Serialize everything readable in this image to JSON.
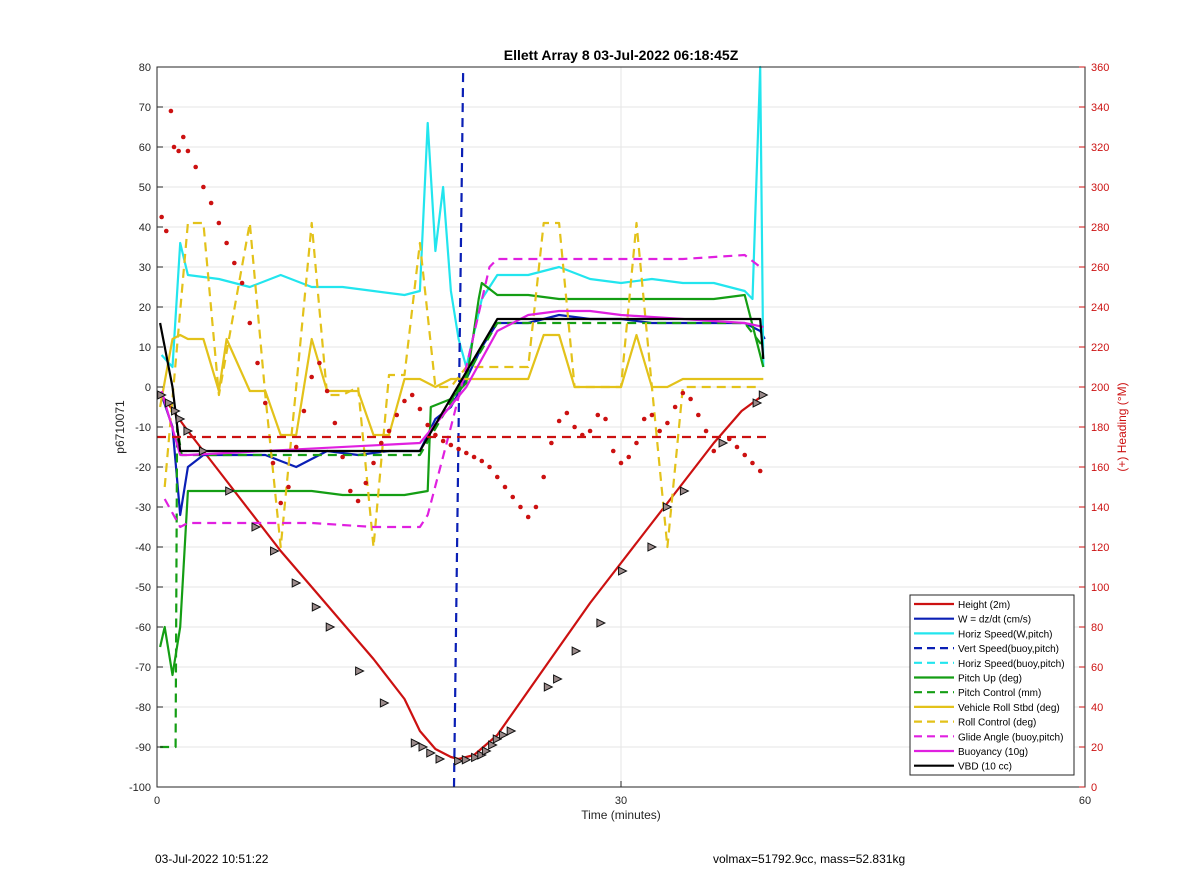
{
  "chart_data": {
    "type": "line",
    "title": "Ellett Array 8 03-Jul-2022 06:18:45Z",
    "xlabel": "Time (minutes)",
    "ylabel_left": "p6710071",
    "ylabel_right": "(+) Heading (°M)",
    "xlim": [
      0,
      60
    ],
    "ylim_left": [
      -100,
      80
    ],
    "ylim_right": [
      0,
      360
    ],
    "xticks": [
      "0",
      "30",
      "60"
    ],
    "yticks_left": [
      "80",
      "70",
      "60",
      "50",
      "40",
      "30",
      "20",
      "10",
      "0",
      "-10",
      "-20",
      "-30",
      "-40",
      "-50",
      "-60",
      "-70",
      "-80",
      "-90",
      "-100"
    ],
    "yticks_right": [
      "360",
      "340",
      "320",
      "300",
      "280",
      "260",
      "240",
      "220",
      "200",
      "180",
      "160",
      "140",
      "120",
      "100",
      "80",
      "60",
      "40",
      "20",
      "0"
    ],
    "grid": true,
    "legend_position": "bottom-right",
    "legend": [
      {
        "label": "Height (2m)",
        "color": "#cc1111",
        "style": "solid"
      },
      {
        "label": "W = dz/dt (cm/s)",
        "color": "#0a1fb5",
        "style": "solid"
      },
      {
        "label": "Horiz Speed(W,pitch)",
        "color": "#22e5ee",
        "style": "solid"
      },
      {
        "label": "Vert Speed(buoy,pitch)",
        "color": "#0a1fb5",
        "style": "dashed"
      },
      {
        "label": "Horiz Speed(buoy,pitch)",
        "color": "#22e5ee",
        "style": "dashed"
      },
      {
        "label": "Pitch Up (deg)",
        "color": "#149e14",
        "style": "solid"
      },
      {
        "label": "Pitch Control (mm)",
        "color": "#149e14",
        "style": "dashed"
      },
      {
        "label": "Vehicle Roll Stbd (deg)",
        "color": "#e3c21a",
        "style": "solid"
      },
      {
        "label": "Roll Control (deg)",
        "color": "#e3c21a",
        "style": "dashed"
      },
      {
        "label": "Glide Angle (buoy,pitch)",
        "color": "#e020e0",
        "style": "dashed"
      },
      {
        "label": "Buoyancy (10g)",
        "color": "#e020e0",
        "style": "solid"
      },
      {
        "label": "VBD (10 cc)",
        "color": "#000000",
        "style": "solid"
      }
    ],
    "series": [
      {
        "name": "Height (2m)",
        "axis": "left",
        "x": [
          0.3,
          2,
          4,
          6,
          8,
          10,
          12,
          14,
          16,
          17,
          18,
          19,
          19.5,
          20.5,
          22,
          24,
          26,
          28,
          30,
          32,
          34,
          36,
          37.8,
          39.2
        ],
        "y": [
          -2,
          -11,
          -21,
          -31,
          -41,
          -50,
          -59,
          -68,
          -78,
          -86,
          -90.5,
          -92.5,
          -93,
          -92,
          -87,
          -76,
          -65,
          -54,
          -44,
          -34,
          -24,
          -14,
          -6,
          -2
        ]
      },
      {
        "name": "W = dz/dt (cm/s)",
        "axis": "left",
        "x": [
          0.3,
          1,
          1.5,
          2,
          3,
          5,
          7,
          9,
          11,
          13,
          15,
          17,
          18,
          19,
          20,
          21,
          22,
          24,
          26,
          28,
          30,
          32,
          34,
          36,
          38,
          39,
          39.3
        ],
        "y": [
          -2,
          -10,
          -32,
          -20,
          -17,
          -17,
          -17,
          -20,
          -16,
          -17,
          -16,
          -16,
          -8,
          -5,
          2,
          10,
          16,
          16,
          18,
          17,
          17,
          16,
          16,
          16,
          16,
          14,
          12
        ]
      },
      {
        "name": "Horiz Speed(W,pitch)",
        "axis": "left",
        "x": [
          0.3,
          1,
          1.5,
          2,
          4,
          6,
          8,
          10,
          12,
          14,
          16,
          17,
          17.5,
          18,
          18.5,
          19,
          19.5,
          20,
          21,
          22,
          24,
          26,
          28,
          30,
          32,
          34,
          36,
          38,
          38.5,
          39,
          39.2
        ],
        "y": [
          8,
          5,
          36,
          28,
          27,
          25,
          28,
          25,
          25,
          24,
          23,
          24,
          66,
          34,
          50,
          24,
          12,
          5,
          22,
          28,
          28,
          30,
          27,
          26,
          27,
          26,
          26,
          24,
          22,
          80,
          5
        ]
      },
      {
        "name": "Vert Speed(buoy,pitch)",
        "axis": "left",
        "x": [
          19.2,
          19.8
        ],
        "y": [
          -100,
          80
        ]
      },
      {
        "name": "Pitch Up (deg)",
        "axis": "left",
        "x": [
          0.2,
          0.5,
          1,
          1.5,
          2,
          4,
          6,
          8,
          10,
          12,
          14,
          16,
          17.5,
          17.7,
          19,
          20,
          20.8,
          21,
          22,
          24,
          26,
          28,
          30,
          32,
          34,
          36,
          38,
          39.2
        ],
        "y": [
          -65,
          -60,
          -72,
          -60,
          -26,
          -26,
          -26,
          -26,
          -26,
          -27,
          -27,
          -27,
          -26,
          -5,
          -3,
          1,
          22,
          26,
          23,
          23,
          22,
          22,
          22,
          22,
          22,
          22,
          23,
          5
        ]
      },
      {
        "name": "Pitch Control (mm)",
        "axis": "left",
        "x": [
          0.2,
          1.2,
          1.3,
          1.6,
          17,
          22,
          38,
          39.2
        ],
        "y": [
          -90,
          -90,
          -10,
          -17,
          -17,
          16,
          16,
          10
        ]
      },
      {
        "name": "Vehicle Roll Stbd (deg)",
        "axis": "left",
        "x": [
          0.2,
          1,
          1.5,
          2,
          3,
          4,
          4.5,
          6,
          7,
          8,
          9,
          10,
          11,
          12,
          13,
          14,
          15,
          16,
          17,
          18,
          19,
          20,
          21,
          22,
          24,
          25,
          26,
          27,
          28,
          30,
          31,
          32,
          33,
          34,
          36,
          38,
          39.2
        ],
        "y": [
          -5,
          12,
          13,
          12,
          12,
          -1,
          12,
          -1,
          -1,
          -12,
          -12,
          12,
          -1,
          -1,
          -1,
          -12,
          -12,
          2,
          2,
          0,
          2,
          2,
          2,
          2,
          2,
          13,
          13,
          0,
          0,
          0,
          13,
          0,
          0,
          2,
          2,
          2,
          2
        ]
      },
      {
        "name": "Roll Control (deg)",
        "axis": "left",
        "x": [
          0.5,
          2,
          3,
          4,
          6,
          7,
          8,
          9,
          10,
          11,
          12,
          13,
          14,
          15,
          16,
          17,
          18,
          19,
          20,
          22,
          24,
          25,
          26,
          27,
          28,
          30,
          31,
          32,
          33,
          34,
          36,
          38,
          39
        ],
        "y": [
          -25,
          41,
          41,
          -2,
          41,
          -2,
          -40,
          0,
          41,
          -2,
          -2,
          0,
          -40,
          3,
          3,
          36,
          0,
          0,
          5,
          5,
          5,
          41,
          41,
          0,
          0,
          0,
          41,
          0,
          -40,
          0,
          0,
          0,
          0
        ]
      },
      {
        "name": "Glide Angle (buoy,pitch)",
        "axis": "left",
        "x": [
          0.5,
          1.5,
          2,
          6,
          10,
          14,
          17,
          17.5,
          19,
          20,
          21.5,
          22,
          26,
          30,
          34,
          38,
          39
        ],
        "y": [
          -28,
          -35,
          -34,
          -34,
          -34,
          -35,
          -35,
          -32,
          -10,
          5,
          30,
          32,
          32,
          32,
          32,
          33,
          30
        ]
      },
      {
        "name": "Buoyancy (10g)",
        "axis": "left",
        "x": [
          0.3,
          1.5,
          2,
          17,
          20,
          22,
          24,
          26,
          28,
          30,
          34,
          38,
          39.2
        ],
        "y": [
          -1,
          -17,
          -17,
          -14,
          0,
          14,
          18,
          19,
          19,
          18,
          17,
          16,
          15
        ]
      },
      {
        "name": "VBD (10 cc)",
        "axis": "left",
        "x": [
          0.2,
          0.4,
          1,
          1.5,
          17,
          22,
          39,
          39.2
        ],
        "y": [
          16,
          12,
          0,
          -16,
          -16,
          17,
          17,
          7
        ]
      },
      {
        "name": "Heading",
        "axis": "right",
        "color": "#cc1111",
        "style": "dots",
        "x": [
          0.3,
          0.6,
          0.9,
          1.1,
          1.4,
          1.7,
          2.0,
          2.5,
          3.0,
          3.5,
          4.0,
          4.5,
          5.0,
          5.5,
          6.0,
          6.5,
          7.0,
          7.5,
          8.0,
          8.5,
          9.0,
          9.5,
          10.0,
          10.5,
          11.0,
          11.5,
          12.0,
          12.5,
          13.0,
          13.5,
          14.0,
          14.5,
          15.0,
          15.5,
          16.0,
          16.5,
          17.0,
          17.5,
          18.0,
          18.5,
          19.0,
          19.5,
          20.0,
          20.5,
          21.0,
          21.5,
          22.0,
          22.5,
          23.0,
          23.5,
          24.0,
          24.5,
          25.0,
          25.5,
          26.0,
          26.5,
          27.0,
          27.5,
          28.0,
          28.5,
          29.0,
          29.5,
          30.0,
          30.5,
          31.0,
          31.5,
          32.0,
          32.5,
          33.0,
          33.5,
          34.0,
          34.5,
          35.0,
          35.5,
          36.0,
          36.5,
          37.0,
          37.5,
          38.0,
          38.5,
          39.0
        ],
        "y": [
          285,
          278,
          338,
          320,
          318,
          325,
          318,
          310,
          300,
          292,
          282,
          272,
          262,
          252,
          232,
          212,
          192,
          162,
          142,
          150,
          170,
          188,
          205,
          212,
          198,
          182,
          165,
          148,
          143,
          152,
          162,
          172,
          178,
          186,
          193,
          196,
          189,
          181,
          176,
          173,
          171,
          169,
          167,
          165,
          163,
          160,
          155,
          150,
          145,
          140,
          135,
          140,
          155,
          172,
          183,
          187,
          180,
          176,
          178,
          186,
          184,
          168,
          162,
          165,
          172,
          184,
          186,
          178,
          182,
          190,
          197,
          194,
          186,
          178,
          168,
          172,
          174,
          170,
          166,
          162,
          158
        ]
      },
      {
        "name": "Heading mean",
        "axis": "right",
        "color": "#cc1111",
        "style": "dashed",
        "x": [
          0,
          39.5
        ],
        "y": [
          175,
          175
        ]
      }
    ],
    "markers": {
      "name": "Height dive markers",
      "axis": "left",
      "points": [
        [
          0.3,
          -2
        ],
        [
          0.8,
          -4
        ],
        [
          1.2,
          -6
        ],
        [
          1.5,
          -8
        ],
        [
          2,
          -11
        ],
        [
          3,
          -16
        ],
        [
          4.7,
          -26
        ],
        [
          6.4,
          -35
        ],
        [
          7.6,
          -41
        ],
        [
          9,
          -49
        ],
        [
          10.3,
          -55
        ],
        [
          11.2,
          -60
        ],
        [
          13.1,
          -71
        ],
        [
          14.7,
          -79
        ],
        [
          16.7,
          -89
        ],
        [
          17.2,
          -90
        ],
        [
          17.7,
          -91.5
        ],
        [
          18.3,
          -93
        ],
        [
          19.5,
          -93.5
        ],
        [
          20.0,
          -93.2
        ],
        [
          20.6,
          -92.6
        ],
        [
          21.0,
          -92
        ],
        [
          21.3,
          -91
        ],
        [
          21.7,
          -89.5
        ],
        [
          22.0,
          -88
        ],
        [
          22.4,
          -87
        ],
        [
          22.9,
          -86
        ],
        [
          25.3,
          -75
        ],
        [
          25.9,
          -73
        ],
        [
          27.1,
          -66
        ],
        [
          28.7,
          -59
        ],
        [
          30.1,
          -46
        ],
        [
          32,
          -40
        ],
        [
          33.0,
          -30
        ],
        [
          34.1,
          -26
        ],
        [
          36.6,
          -14
        ],
        [
          38.8,
          -4
        ],
        [
          39.2,
          -2
        ]
      ]
    }
  },
  "footer": {
    "timestamp": "03-Jul-2022 10:51:22",
    "mass_info": "volmax=51792.9cc, mass=52.831kg"
  }
}
